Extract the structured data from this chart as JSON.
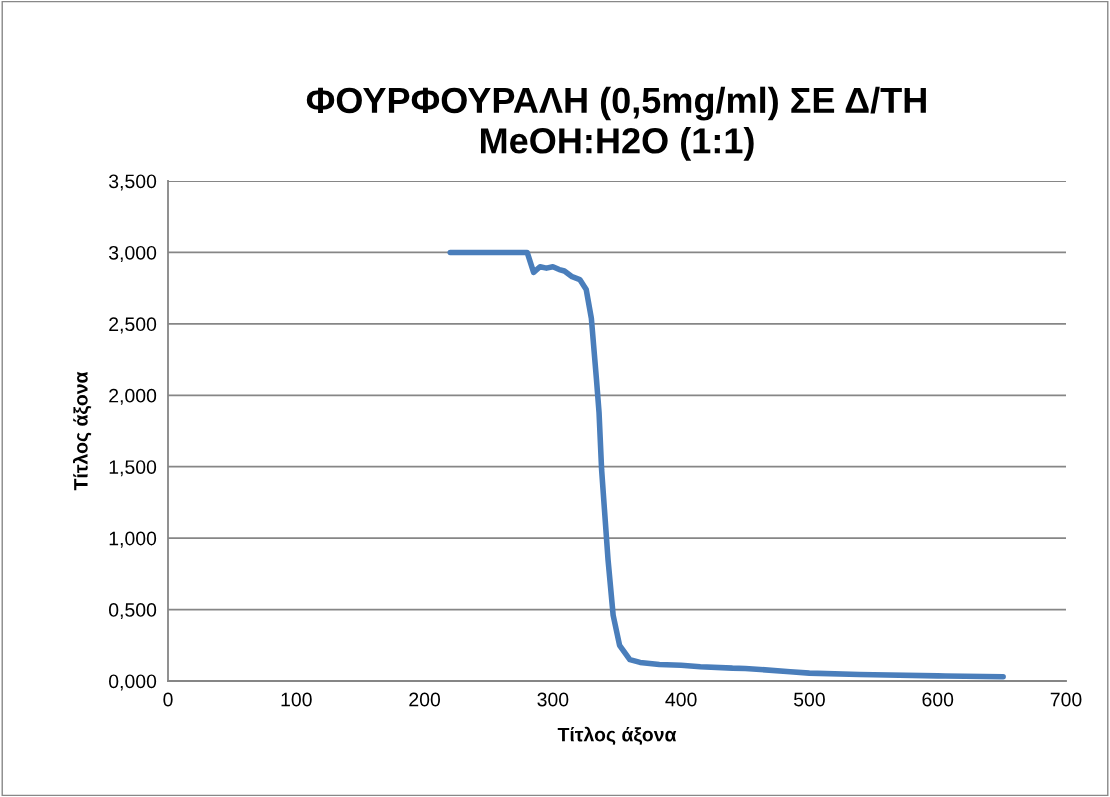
{
  "chart_data": {
    "type": "line",
    "title": "ΦΟΥΡΦΟΥΡΑΛΗ (0,5mg/ml) ΣΕ Δ/ΤΗ\nMeOH:H2O (1:1)",
    "xlabel": "Τίτλος άξονα",
    "ylabel": "Τίτλος άξονα",
    "x": [
      220,
      280,
      285,
      290,
      295,
      300,
      305,
      309,
      315,
      321,
      326,
      330,
      334,
      336,
      338,
      343,
      347,
      352,
      360,
      368,
      383,
      400,
      415,
      440,
      450,
      485,
      500,
      539,
      550,
      600,
      606,
      651
    ],
    "series": [
      {
        "color": "#4a7ebb",
        "values": [
          3.0,
          3.0,
          2.86,
          2.9,
          2.89,
          2.9,
          2.88,
          2.87,
          2.83,
          2.81,
          2.74,
          2.54,
          2.11,
          1.88,
          1.48,
          0.85,
          0.46,
          0.25,
          0.15,
          0.13,
          0.115,
          0.11,
          0.1,
          0.09,
          0.088,
          0.065,
          0.055,
          0.045,
          0.044,
          0.036,
          0.035,
          0.03
        ]
      }
    ],
    "xlim": [
      0,
      700
    ],
    "xticks": [
      0,
      100,
      200,
      300,
      400,
      500,
      600,
      700
    ],
    "ylim": [
      0,
      3.5
    ],
    "yticks": [
      {
        "value": 0,
        "label": "0,000"
      },
      {
        "value": 0.5,
        "label": "0,500"
      },
      {
        "value": 1.0,
        "label": "1,000"
      },
      {
        "value": 1.5,
        "label": "1,500"
      },
      {
        "value": 2.0,
        "label": "2,000"
      },
      {
        "value": 2.5,
        "label": "2,500"
      },
      {
        "value": 3.0,
        "label": "3,000"
      },
      {
        "value": 3.5,
        "label": "3,500"
      }
    ],
    "grid": "y",
    "marker": "none",
    "line_style": "solid"
  }
}
